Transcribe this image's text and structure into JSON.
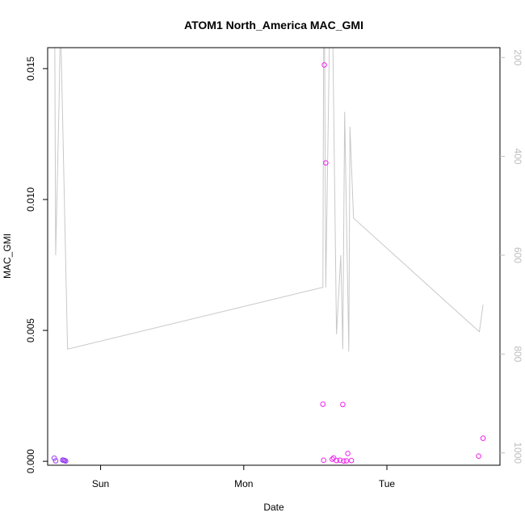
{
  "chart_data": {
    "type": "scatter",
    "title": "ATOM1 North_America MAC_GMI",
    "xlabel": "Date",
    "ylabel": "MAC_GMI",
    "x_axis": {
      "type": "date",
      "ticks": [
        {
          "value": "Sun",
          "day": 1
        },
        {
          "value": "Mon",
          "day": 2
        },
        {
          "value": "Tue",
          "day": 3
        }
      ],
      "xlim": [
        0.63,
        3.79
      ]
    },
    "y_axis_left": {
      "ylim": [
        -0.00015,
        0.0158
      ],
      "ticks": [
        0.0,
        0.005,
        0.01,
        0.015
      ],
      "tick_labels": [
        "0.000",
        "0.005",
        "0.010",
        "0.015"
      ]
    },
    "y_axis_right": {
      "reversed": true,
      "ylim": [
        1025,
        180
      ],
      "ticks": [
        200,
        400,
        600,
        800,
        1000
      ],
      "tick_labels": [
        "200",
        "400",
        "600",
        "800",
        "1000"
      ],
      "color": "#bdbdbd"
    },
    "colors": {
      "series_line": "#c8c8c8",
      "points_early": "#9a3ff0",
      "points_late": "#ee22ee",
      "axes": "#000000"
    },
    "series": [
      {
        "kind": "points",
        "axis": "left",
        "points": [
          {
            "x": 0.676,
            "y": 0.00012,
            "color": "#9a3ff0"
          },
          {
            "x": 0.686,
            "y": 2e-05,
            "color": "#9a3ff0"
          },
          {
            "x": 0.735,
            "y": 5e-05,
            "color": "#9a3ff0"
          },
          {
            "x": 0.742,
            "y": 4e-05,
            "color": "#9a3ff0"
          },
          {
            "x": 0.749,
            "y": 3e-05,
            "color": "#9a3ff0"
          },
          {
            "x": 0.756,
            "y": 1e-05,
            "color": "#9a3ff0"
          },
          {
            "x": 2.553,
            "y": 0.00218,
            "color": "#ee22ee"
          },
          {
            "x": 2.558,
            "y": 4e-05,
            "color": "#ee22ee"
          },
          {
            "x": 2.563,
            "y": 0.01514,
            "color": "#ee22ee"
          },
          {
            "x": 2.573,
            "y": 0.0114,
            "color": "#ee22ee"
          },
          {
            "x": 2.618,
            "y": 8e-05,
            "color": "#ee22ee"
          },
          {
            "x": 2.628,
            "y": 0.00013,
            "color": "#ee22ee"
          },
          {
            "x": 2.648,
            "y": 3e-05,
            "color": "#ee22ee"
          },
          {
            "x": 2.672,
            "y": 4e-05,
            "color": "#ee22ee"
          },
          {
            "x": 2.692,
            "y": 0.00217,
            "color": "#ee22ee"
          },
          {
            "x": 2.698,
            "y": 1e-05,
            "color": "#ee22ee"
          },
          {
            "x": 2.717,
            "y": 2e-05,
            "color": "#ee22ee"
          },
          {
            "x": 2.727,
            "y": 0.0003,
            "color": "#ee22ee"
          },
          {
            "x": 2.752,
            "y": 3e-05,
            "color": "#ee22ee"
          },
          {
            "x": 3.641,
            "y": 0.0002,
            "color": "#ee22ee"
          },
          {
            "x": 3.672,
            "y": 0.00088,
            "color": "#ee22ee"
          }
        ]
      },
      {
        "kind": "line",
        "axis": "right",
        "points": [
          {
            "x": 0.68,
            "y": 180
          },
          {
            "x": 0.686,
            "y": 600
          },
          {
            "x": 0.709,
            "y": 300
          },
          {
            "x": 0.716,
            "y": 180
          },
          {
            "x": 0.724,
            "y": 180
          },
          {
            "x": 0.769,
            "y": 790
          },
          {
            "x": 2.553,
            "y": 665
          },
          {
            "x": 2.558,
            "y": 180
          },
          {
            "x": 2.565,
            "y": 180
          },
          {
            "x": 2.573,
            "y": 665
          },
          {
            "x": 2.598,
            "y": 180
          },
          {
            "x": 2.623,
            "y": 180
          },
          {
            "x": 2.648,
            "y": 760
          },
          {
            "x": 2.678,
            "y": 600
          },
          {
            "x": 2.692,
            "y": 790
          },
          {
            "x": 2.705,
            "y": 310
          },
          {
            "x": 2.734,
            "y": 795
          },
          {
            "x": 2.742,
            "y": 340
          },
          {
            "x": 2.767,
            "y": 525
          },
          {
            "x": 3.646,
            "y": 755
          },
          {
            "x": 3.672,
            "y": 700
          }
        ]
      }
    ]
  }
}
